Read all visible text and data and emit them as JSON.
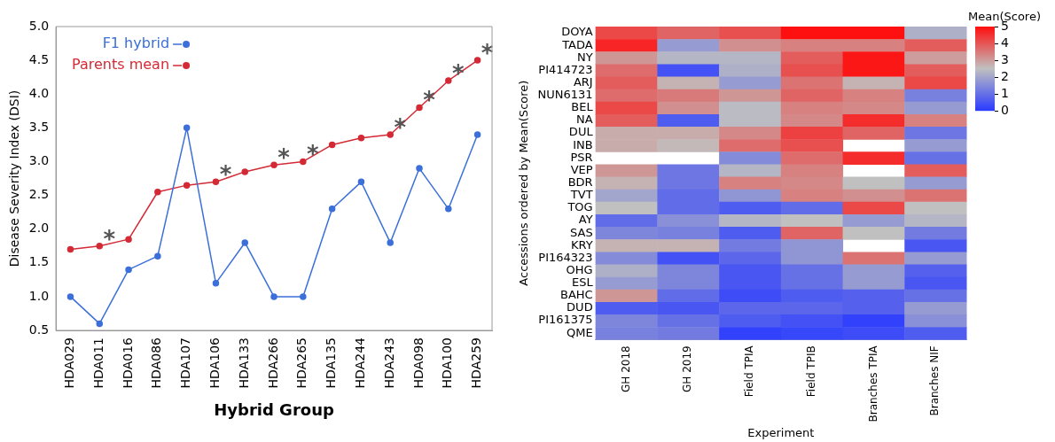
{
  "chart_data": [
    {
      "type": "line",
      "xlabel": "Hybrid Group",
      "ylabel": "Disease Severity Index (DSI)",
      "categories": [
        "HDA029",
        "HDA011",
        "HDA016",
        "HDA086",
        "HDA107",
        "HDA106",
        "HDA133",
        "HDA266",
        "HDA265",
        "HDA135",
        "HDA244",
        "HDA243",
        "HDA098",
        "HDA100",
        "HDA259"
      ],
      "series": [
        {
          "name": "F1 hybrid",
          "color": "#3b6fd9",
          "values": [
            1.0,
            0.6,
            1.4,
            1.6,
            3.5,
            1.2,
            1.8,
            1.0,
            1.0,
            2.3,
            2.7,
            1.8,
            2.9,
            2.3,
            3.4
          ]
        },
        {
          "name": "Parents mean",
          "color": "#d42a35",
          "values": [
            1.7,
            1.75,
            1.85,
            2.55,
            2.65,
            2.7,
            2.85,
            2.95,
            3.0,
            3.25,
            3.35,
            3.4,
            3.8,
            4.2,
            4.5
          ]
        }
      ],
      "ylim": [
        0.5,
        5.0
      ],
      "yticks": [
        {
          "value": 0.5,
          "label": "0.5"
        },
        {
          "value": 1,
          "label": "1.0"
        },
        {
          "value": 1.5,
          "label": "1.5"
        },
        {
          "value": 2,
          "label": "2.0"
        },
        {
          "value": 2.5,
          "label": "2.5"
        },
        {
          "value": 3,
          "label": "3.0"
        },
        {
          "value": 3.5,
          "label": "3.5"
        },
        {
          "value": 4,
          "label": "4.0"
        },
        {
          "value": 4.5,
          "label": "4.5"
        },
        {
          "value": 5,
          "label": "5.0"
        }
      ],
      "marker": "circle",
      "legend": "top left",
      "grid": false,
      "annotations": [
        {
          "text": "*",
          "x": "HDA011",
          "y": 1.75
        },
        {
          "text": "*",
          "x": "HDA106",
          "y": 2.7
        },
        {
          "text": "*",
          "x": "HDA266",
          "y": 2.95
        },
        {
          "text": "*",
          "x": "HDA265",
          "y": 3.0
        },
        {
          "text": "*",
          "x": "HDA243",
          "y": 3.4
        },
        {
          "text": "*",
          "x": "HDA098",
          "y": 3.8
        },
        {
          "text": "*",
          "x": "HDA100",
          "y": 4.2
        },
        {
          "text": "*",
          "x": "HDA259",
          "y": 4.5
        }
      ]
    },
    {
      "type": "heatmap",
      "xlabel": "Experiment",
      "ylabel": "Accessions ordered by Mean(Score)",
      "clabel": "Mean(Score)",
      "categories": [
        "GH 2018",
        "GH 2019",
        "Field TPIA",
        "Field TPIB",
        "Branches TPIA",
        "Branches NIF"
      ],
      "y_categories": [
        "DOYA",
        "TADA",
        "NY",
        "PI414723",
        "ARJ",
        "NUN6131",
        "BEL",
        "NA",
        "DUL",
        "INB",
        "PSR",
        "VEP",
        "BDR",
        "TVT",
        "TOG",
        "AY",
        "SAS",
        "KRY",
        "PI164323",
        "OHG",
        "ESL",
        "BAHC",
        "DUD",
        "PI161375",
        "QME"
      ],
      "cells": [
        [
          4.2,
          3.8,
          4.1,
          5.0,
          5.0,
          2.2
        ],
        [
          4.7,
          1.8,
          3.2,
          3.4,
          3.4,
          3.9
        ],
        [
          3.1,
          2.3,
          2.3,
          3.9,
          4.9,
          3.0
        ],
        [
          3.7,
          0.4,
          2.2,
          4.1,
          4.9,
          3.9
        ],
        [
          3.9,
          2.7,
          1.8,
          3.6,
          2.7,
          4.2
        ],
        [
          3.7,
          3.5,
          3.1,
          3.8,
          3.4,
          1.3
        ],
        [
          4.2,
          3.2,
          2.4,
          3.4,
          3.3,
          1.8
        ],
        [
          3.9,
          0.6,
          2.4,
          3.3,
          4.6,
          3.4
        ],
        [
          2.8,
          2.8,
          3.3,
          4.3,
          3.8,
          1.1
        ],
        [
          2.8,
          2.6,
          3.7,
          4.1,
          null,
          1.8
        ],
        [
          null,
          null,
          1.5,
          3.7,
          4.6,
          1.0
        ],
        [
          3.1,
          1.1,
          2.3,
          3.4,
          null,
          3.9
        ],
        [
          2.7,
          1.1,
          3.4,
          3.3,
          2.5,
          1.8
        ],
        [
          2.0,
          0.9,
          1.7,
          3.4,
          3.2,
          3.6
        ],
        [
          2.5,
          0.9,
          0.6,
          0.9,
          4.2,
          2.5
        ],
        [
          0.9,
          1.6,
          2.3,
          2.5,
          1.8,
          2.3
        ],
        [
          1.4,
          1.3,
          0.6,
          3.8,
          2.5,
          1.2
        ],
        [
          2.7,
          2.7,
          1.2,
          1.7,
          null,
          0.5
        ],
        [
          1.5,
          0.4,
          0.8,
          1.7,
          3.6,
          1.8
        ],
        [
          2.2,
          1.4,
          0.5,
          1.0,
          1.8,
          0.7
        ],
        [
          1.8,
          1.4,
          0.5,
          1.0,
          1.8,
          0.5
        ],
        [
          3.1,
          0.9,
          0.3,
          0.6,
          0.7,
          1.0
        ],
        [
          0.6,
          0.5,
          0.8,
          0.8,
          0.7,
          1.8
        ],
        [
          1.4,
          1.0,
          0.6,
          0.4,
          0.1,
          1.6
        ],
        [
          1.3,
          1.2,
          0.1,
          0.2,
          0.3,
          0.6
        ]
      ],
      "clim": [
        0,
        5
      ],
      "cticks": [
        0,
        1,
        2,
        3,
        4,
        5
      ]
    }
  ]
}
